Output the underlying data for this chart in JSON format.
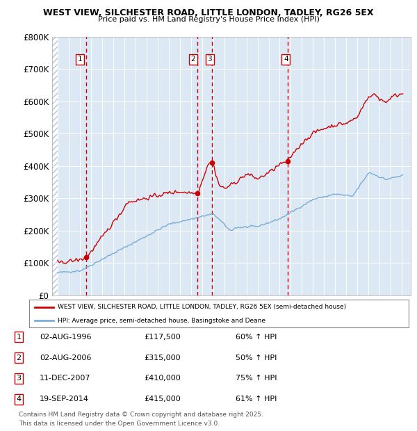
{
  "title1": "WEST VIEW, SILCHESTER ROAD, LITTLE LONDON, TADLEY, RG26 5EX",
  "title2": "Price paid vs. HM Land Registry's House Price Index (HPI)",
  "ylim": [
    0,
    800000
  ],
  "yticks": [
    0,
    100000,
    200000,
    300000,
    400000,
    500000,
    600000,
    700000,
    800000
  ],
  "ytick_labels": [
    "£0",
    "£100K",
    "£200K",
    "£300K",
    "£400K",
    "£500K",
    "£600K",
    "£700K",
    "£800K"
  ],
  "xlim_start": 1993.5,
  "xlim_end": 2025.8,
  "bg_chart": "#dce9f5",
  "price_color": "#cc0000",
  "hpi_color": "#7aadd4",
  "vline_years": [
    1996.58,
    2006.58,
    2007.92,
    2014.72
  ],
  "sale_points": [
    {
      "year": 1996.58,
      "price": 117500,
      "label": "1"
    },
    {
      "year": 2006.58,
      "price": 315000,
      "label": "2"
    },
    {
      "year": 2007.92,
      "price": 410000,
      "label": "3"
    },
    {
      "year": 2014.72,
      "price": 415000,
      "label": "4"
    }
  ],
  "legend_line1": "WEST VIEW, SILCHESTER ROAD, LITTLE LONDON, TADLEY, RG26 5EX (semi-detached house)",
  "legend_line2": "HPI: Average price, semi-detached house, Basingstoke and Deane",
  "table_rows": [
    {
      "num": "1",
      "date": "02-AUG-1996",
      "price": "£117,500",
      "hpi": "60% ↑ HPI"
    },
    {
      "num": "2",
      "date": "02-AUG-2006",
      "price": "£315,000",
      "hpi": "50% ↑ HPI"
    },
    {
      "num": "3",
      "date": "11-DEC-2007",
      "price": "£410,000",
      "hpi": "75% ↑ HPI"
    },
    {
      "num": "4",
      "date": "19-SEP-2014",
      "price": "£415,000",
      "hpi": "61% ↑ HPI"
    }
  ],
  "footnote1": "Contains HM Land Registry data © Crown copyright and database right 2025.",
  "footnote2": "This data is licensed under the Open Government Licence v3.0."
}
